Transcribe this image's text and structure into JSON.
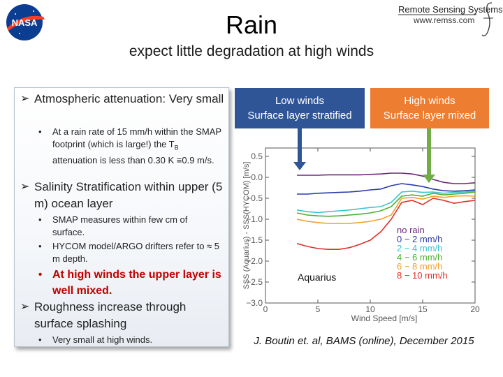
{
  "header": {
    "title": "Rain",
    "subtitle": "expect little degradation at high winds",
    "rss_title": "Remote Sensing Systems",
    "rss_url": "www.remss.com",
    "nasa_logo_text": "NASA"
  },
  "left_panel": {
    "bullets": [
      {
        "text": "Atmospheric attenuation: Very small",
        "sub": [
          {
            "text_pre": "At a rain rate of 15 mm/h within the SMAP footprint (which is large!) the T",
            "text_sub": "B",
            "text_post": " attenuation is less than 0.30 K ≡0.9 m/s."
          }
        ]
      },
      {
        "text": "Salinity Stratification within upper (5 m) ocean layer",
        "sub": [
          {
            "text": "SMAP measures within few cm of surface."
          },
          {
            "text": "HYCOM model/ARGO drifters refer to ≈ 5 m depth."
          }
        ],
        "highlight": "At high winds the upper layer is well mixed."
      },
      {
        "text": "Roughness increase through surface splashing",
        "sub": [
          {
            "text": "Very small at high winds."
          }
        ]
      }
    ]
  },
  "panels": {
    "low_label": "Low winds\nSurface layer stratified",
    "low_line1": "Low winds",
    "low_line2": "Surface layer stratified",
    "high_line1": "High winds",
    "high_line2": "Surface layer mixed"
  },
  "chart_data": {
    "type": "line",
    "title": "",
    "xlabel": "Wind Speed [m/s]",
    "ylabel": "SSS (Aquarius) - SSS(HYCOM) [m/s]",
    "xlim": [
      0,
      20
    ],
    "ylim": [
      -3.0,
      0.7
    ],
    "xticks": [
      "0",
      "5",
      "10",
      "15",
      "20"
    ],
    "yticks": [
      "0.5",
      "0.0",
      "−0.5",
      "−1.0",
      "−1.5",
      "−2.0",
      "−2.5",
      "−3.0"
    ],
    "annotation": "Aquarius",
    "x": [
      3,
      4,
      5,
      6,
      7,
      8,
      9,
      10,
      11,
      12,
      13,
      14,
      15,
      16,
      17,
      18,
      19,
      20
    ],
    "series": [
      {
        "name": "no rain",
        "color": "#6a2a7a",
        "values": [
          0.05,
          0.05,
          0.05,
          0.06,
          0.06,
          0.06,
          0.06,
          0.07,
          0.08,
          0.1,
          0.1,
          0.08,
          0.03,
          -0.05,
          -0.12,
          -0.15,
          -0.15,
          -0.13
        ]
      },
      {
        "name": "0 − 2 mm/h",
        "color": "#2a3aa8",
        "values": [
          -0.4,
          -0.4,
          -0.38,
          -0.37,
          -0.36,
          -0.35,
          -0.33,
          -0.3,
          -0.28,
          -0.2,
          -0.15,
          -0.18,
          -0.22,
          -0.28,
          -0.32,
          -0.33,
          -0.32,
          -0.3
        ]
      },
      {
        "name": "2 − 4 mm/h",
        "color": "#39c4d0",
        "values": [
          -0.78,
          -0.82,
          -0.84,
          -0.82,
          -0.8,
          -0.78,
          -0.75,
          -0.72,
          -0.7,
          -0.6,
          -0.35,
          -0.33,
          -0.36,
          -0.35,
          -0.38,
          -0.36,
          -0.35,
          -0.33
        ]
      },
      {
        "name": "4 − 6 mm/h",
        "color": "#4caf30",
        "values": [
          -0.85,
          -0.9,
          -0.92,
          -0.93,
          -0.92,
          -0.9,
          -0.88,
          -0.85,
          -0.8,
          -0.7,
          -0.45,
          -0.42,
          -0.45,
          -0.38,
          -0.42,
          -0.4,
          -0.38,
          -0.35
        ]
      },
      {
        "name": "6 − 8 mm/h",
        "color": "#f0a030",
        "values": [
          -1.0,
          -1.05,
          -1.08,
          -1.1,
          -1.1,
          -1.1,
          -1.08,
          -1.05,
          -1.0,
          -0.9,
          -0.5,
          -0.48,
          -0.52,
          -0.45,
          -0.48,
          -0.45,
          -0.44,
          -0.45
        ]
      },
      {
        "name": "8 − 10 mm/h",
        "color": "#e03028",
        "values": [
          -1.58,
          -1.65,
          -1.7,
          -1.72,
          -1.72,
          -1.68,
          -1.6,
          -1.5,
          -1.3,
          -1.0,
          -0.6,
          -0.55,
          -0.65,
          -0.5,
          -0.55,
          -0.62,
          -0.58,
          -0.55
        ]
      }
    ],
    "arrows": [
      {
        "label": "low-winds",
        "color": "#2f5597"
      },
      {
        "label": "high-winds",
        "color": "#70ad47"
      }
    ]
  },
  "citation": "J. Boutin et. al, BAMS (online), December 2015"
}
